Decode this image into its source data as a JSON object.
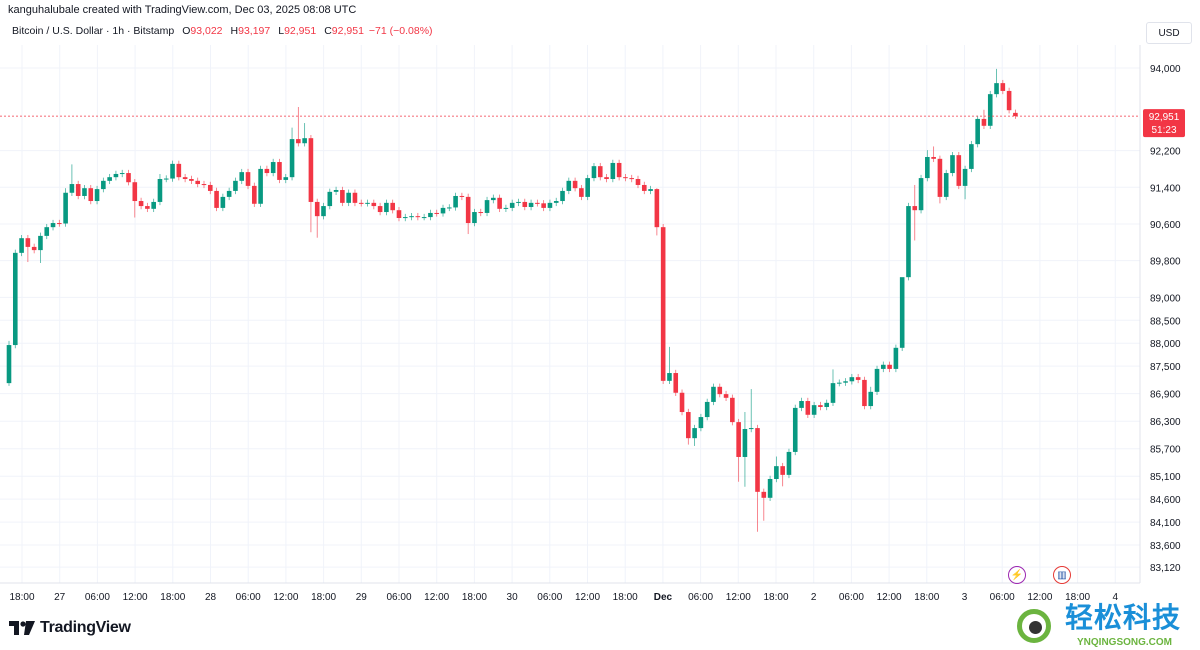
{
  "header": {
    "credit": "kanguhalubale created with TradingView.com, Dec 03, 2025 08:08 UTC",
    "symbol": "Bitcoin / U.S. Dollar · 1h · Bitstamp",
    "o_label": "O",
    "o_value": "93,022",
    "h_label": "H",
    "h_value": "93,197",
    "l_label": "L",
    "l_value": "92,951",
    "c_label": "C",
    "c_value": "92,951",
    "change": "−71 (−0.08%)"
  },
  "currency_button": "USD",
  "last_price": {
    "value": "92,951",
    "countdown": "51:23"
  },
  "brand": "TradingView",
  "watermark": {
    "cn": "轻松科技",
    "en": "YNQINGSONG.COM"
  },
  "events": [
    "earnings-flash-icon",
    "us-economic-event-icon"
  ],
  "colors": {
    "up": "#089981",
    "down": "#f23645",
    "grid": "#f0f3fa",
    "text": "#131722"
  },
  "chart_data": {
    "type": "candlestick",
    "interval": "1h",
    "y_ticks": [
      "94,000",
      "92,200",
      "91,400",
      "90,600",
      "89,800",
      "89,000",
      "88,500",
      "88,000",
      "87,500",
      "86,900",
      "86,300",
      "85,700",
      "85,100",
      "84,600",
      "84,100",
      "83,600",
      "83,120"
    ],
    "y_tick_values": [
      94000,
      92200,
      91400,
      90600,
      89800,
      89000,
      88500,
      88000,
      87500,
      86900,
      86300,
      85700,
      85100,
      84600,
      84100,
      83600,
      83120
    ],
    "x_ticks": [
      "18:00",
      "27",
      "06:00",
      "12:00",
      "18:00",
      "28",
      "06:00",
      "12:00",
      "18:00",
      "29",
      "06:00",
      "12:00",
      "18:00",
      "30",
      "06:00",
      "12:00",
      "18:00",
      "Dec",
      "06:00",
      "12:00",
      "18:00",
      "2",
      "06:00",
      "12:00",
      "18:00",
      "3",
      "06:00",
      "12:00",
      "18:00",
      "4"
    ],
    "x_ticks_bold": [
      "Dec"
    ],
    "first_candle": "Nov 26 16:00",
    "first_open": 87130,
    "last_open": 93022,
    "close": [
      87960,
      89970,
      90290,
      90100,
      90030,
      90340,
      90530,
      90620,
      90610,
      91280,
      91470,
      91210,
      91380,
      91100,
      91360,
      91540,
      91620,
      91690,
      91710,
      91510,
      91100,
      90990,
      90930,
      91080,
      91580,
      91590,
      91910,
      91620,
      91580,
      91540,
      91470,
      91450,
      91320,
      90950,
      91190,
      91320,
      91540,
      91730,
      91430,
      91040,
      91800,
      91710,
      91950,
      91560,
      91620,
      92450,
      92360,
      92470,
      91080,
      90770,
      90990,
      91300,
      91340,
      91060,
      91280,
      91060,
      91050,
      91060,
      90990,
      90860,
      91060,
      90900,
      90730,
      90750,
      90770,
      90750,
      90750,
      90840,
      90830,
      90950,
      90960,
      91210,
      91190,
      90620,
      90860,
      90840,
      91120,
      91170,
      90930,
      90950,
      91060,
      91080,
      90970,
      91060,
      91050,
      90950,
      91060,
      91100,
      91320,
      91540,
      91380,
      91190,
      91600,
      91860,
      91620,
      91580,
      91930,
      91620,
      91600,
      91580,
      91450,
      91320,
      91360,
      90530,
      87180,
      87350,
      86920,
      86500,
      85930,
      86150,
      86390,
      86720,
      87050,
      86890,
      86810,
      86280,
      85520,
      86130,
      86150,
      84760,
      84630,
      85040,
      85320,
      85130,
      85630,
      86590,
      86740,
      86440,
      86650,
      86610,
      86700,
      87130,
      87140,
      87170,
      87260,
      87200,
      86630,
      86940,
      87440,
      87530,
      87440,
      87900,
      89440,
      90990,
      90900,
      91600,
      92060,
      92020,
      91190,
      91710,
      92100,
      91430,
      91800,
      92340,
      92890,
      92740,
      93430,
      93670,
      93500,
      93080,
      92951
    ],
    "wick_highs": {
      "0": 88050,
      "9": 91380,
      "10": 91900,
      "24": 91690,
      "45": 92700,
      "46": 93150,
      "47": 92800,
      "103": 91380,
      "105": 87920,
      "117": 86500,
      "118": 87000,
      "122": 85530,
      "126": 86810,
      "131": 87430,
      "137": 87050,
      "142": 88000,
      "144": 91450,
      "146": 92210,
      "147": 92290,
      "155": 93090,
      "157": 93980
    },
    "wick_lows": {
      "0": 87070,
      "3": 89770,
      "5": 89750,
      "20": 90740,
      "48": 90420,
      "49": 90300,
      "73": 90380,
      "103": 90350,
      "108": 85790,
      "109": 85760,
      "116": 84980,
      "117": 84870,
      "119": 83890,
      "120": 84130,
      "123": 84880,
      "144": 90240,
      "148": 91050,
      "152": 91140,
      "160": 92890
    }
  }
}
